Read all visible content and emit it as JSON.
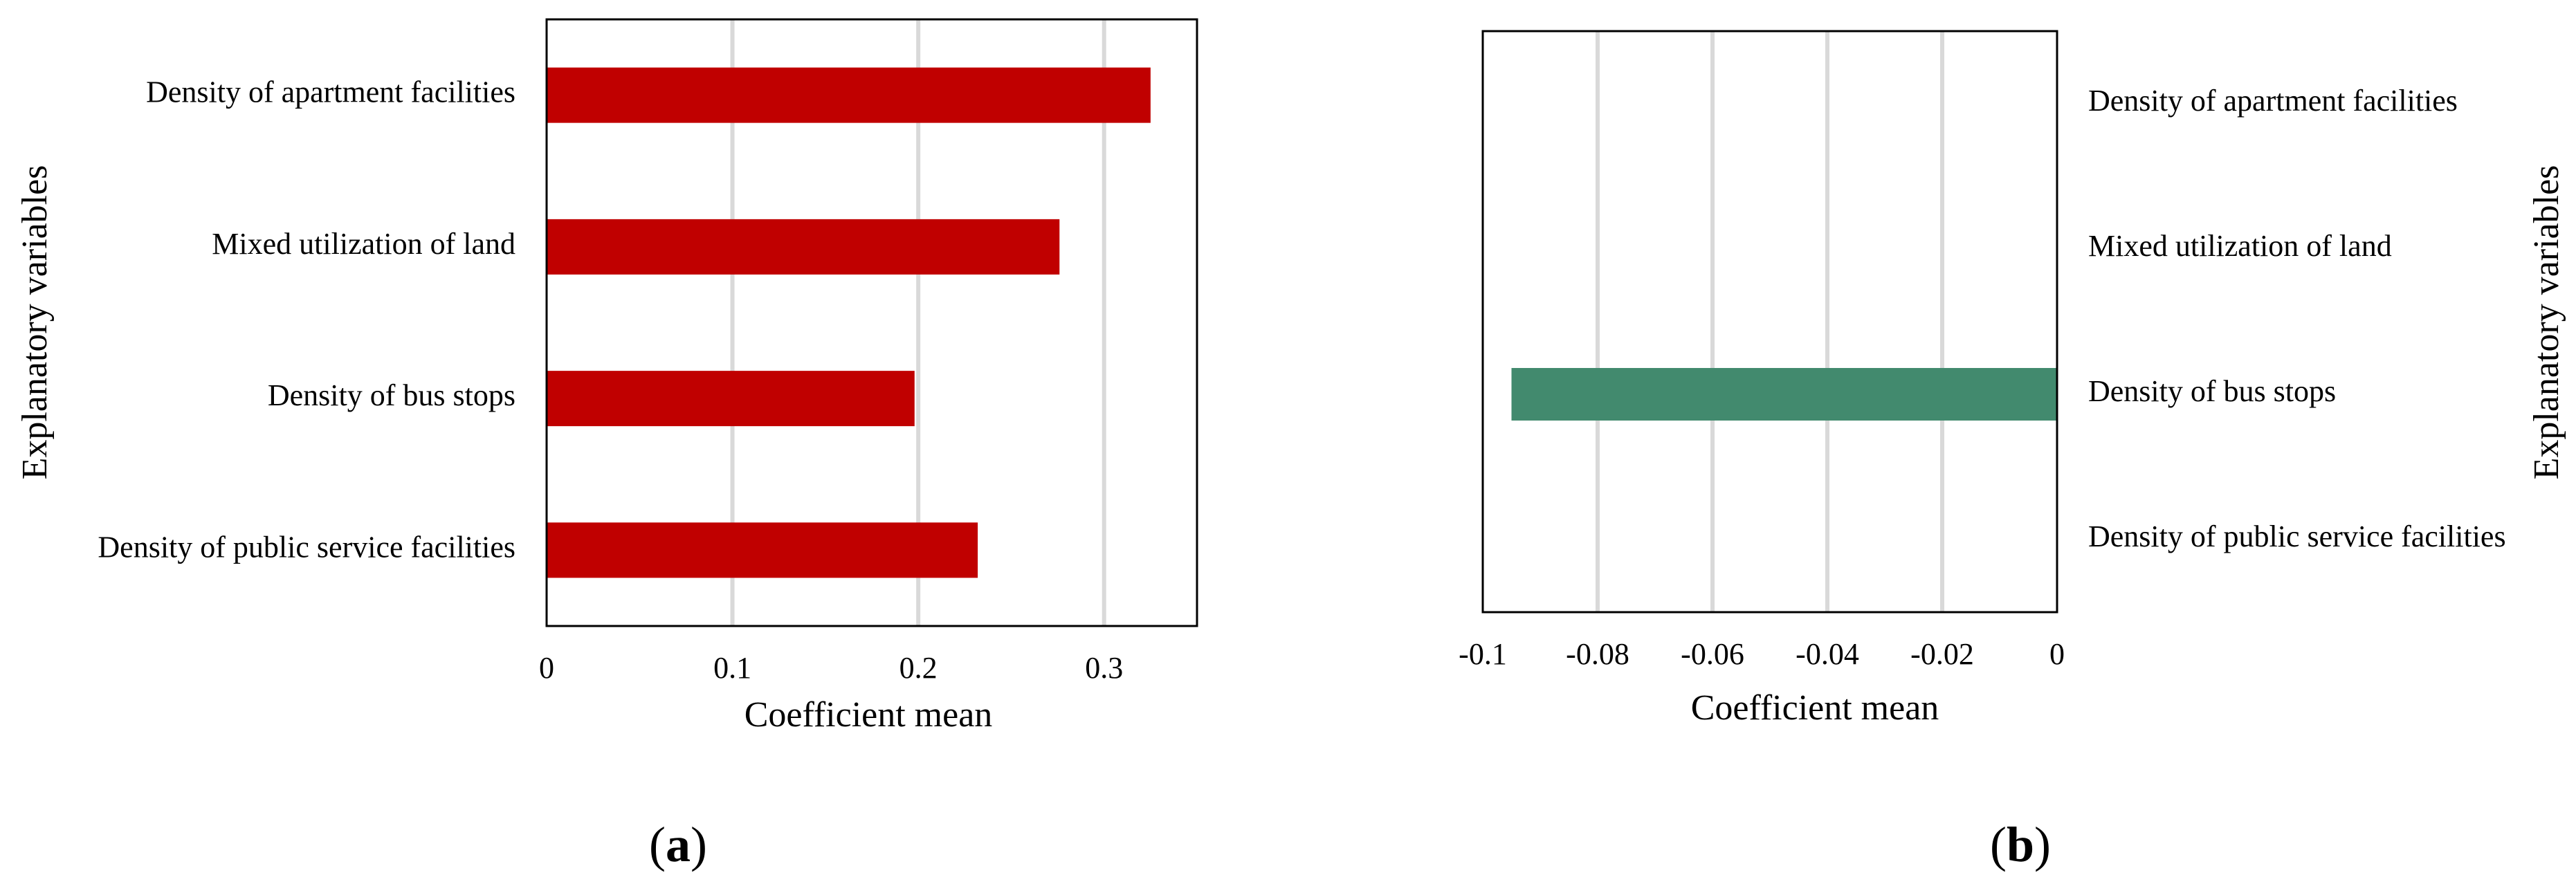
{
  "chart_data": [
    {
      "type": "bar",
      "orientation": "horizontal",
      "panel_label": "(a)",
      "categories": [
        "Density of apartment facilities",
        "Mixed utilization of land",
        "Density of bus stops",
        "Density of public service facilities"
      ],
      "values": [
        0.325,
        0.276,
        0.198,
        0.232
      ],
      "xlabel": "Coefficient mean",
      "ylabel": "Explanatory variables",
      "xlim": [
        0,
        0.35
      ],
      "xticks": [
        0,
        0.1,
        0.2,
        0.3
      ],
      "xtick_labels": [
        "0",
        "0.1",
        "0.2",
        "0.3"
      ],
      "grid": "vertical",
      "bar_color": "#c00000",
      "category_labels_side": "left"
    },
    {
      "type": "bar",
      "orientation": "horizontal",
      "panel_label": "(b)",
      "categories": [
        "Density of apartment facilities",
        "Mixed utilization of land",
        "Density of bus stops",
        "Density of public service facilities"
      ],
      "values": [
        null,
        null,
        -0.095,
        null
      ],
      "xlabel": "Coefficient mean",
      "ylabel": "Explanatory variables",
      "xlim": [
        -0.1,
        0
      ],
      "xticks": [
        -0.1,
        -0.08,
        -0.06,
        -0.04,
        -0.02,
        0
      ],
      "xtick_labels": [
        "-0.1",
        "-0.08",
        "-0.06",
        "-0.04",
        "-0.02",
        "0"
      ],
      "grid": "vertical",
      "bar_color": "#428a6e",
      "category_labels_side": "right"
    }
  ]
}
